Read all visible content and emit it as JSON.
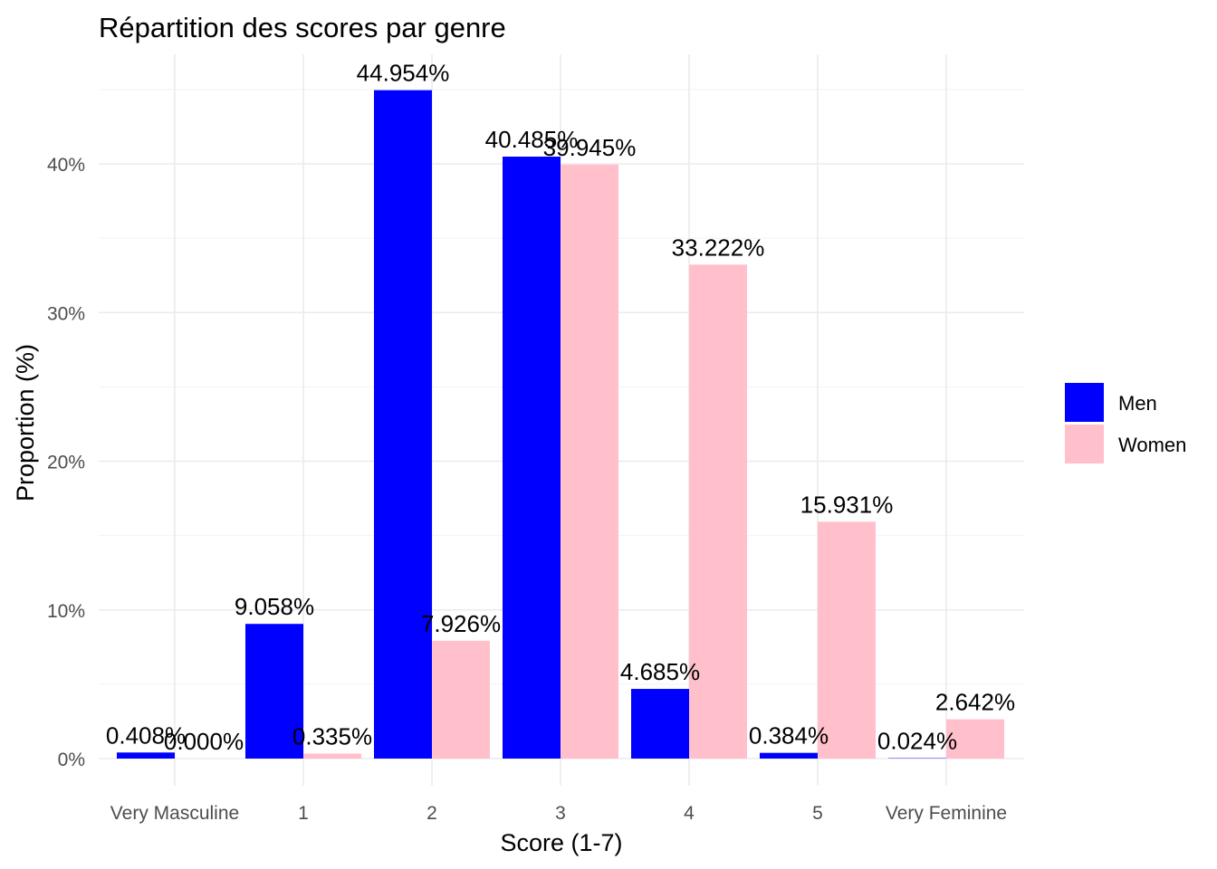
{
  "chart_data": {
    "type": "bar",
    "title": "Répartition des scores par genre",
    "xlabel": "Score (1-7)",
    "ylabel": "Proportion (%)",
    "categories": [
      "Very Masculine",
      "1",
      "2",
      "3",
      "4",
      "5",
      "Very Feminine"
    ],
    "series": [
      {
        "name": "Men",
        "color": "#0000ff",
        "values": [
          0.408,
          9.058,
          44.954,
          40.485,
          4.685,
          0.384,
          0.024
        ],
        "labels": [
          "0.408%",
          "9.058%",
          "44.954%",
          "40.485%",
          "4.685%",
          "0.384%",
          "0.024%"
        ]
      },
      {
        "name": "Women",
        "color": "#ffc0cb",
        "values": [
          0.0,
          0.335,
          7.926,
          39.945,
          33.222,
          15.931,
          2.642
        ],
        "labels": [
          "0.000%",
          "0.335%",
          "7.926%",
          "39.945%",
          "33.222%",
          "15.931%",
          "2.642%"
        ]
      }
    ],
    "yticks": [
      0,
      10,
      20,
      30,
      40
    ],
    "ytick_labels": [
      "0%",
      "10%",
      "20%",
      "30%",
      "40%"
    ],
    "ylim": [
      -1.9,
      47.2
    ],
    "grid": true,
    "legend_position": "right"
  }
}
